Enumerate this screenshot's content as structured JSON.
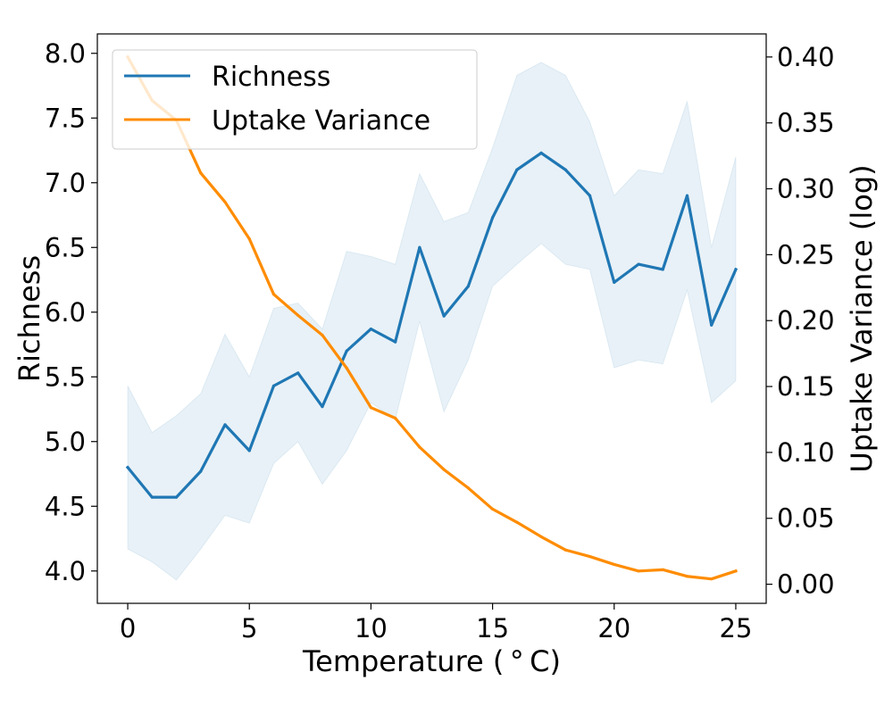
{
  "chart_data": {
    "type": "line",
    "xlabel": "Temperature ($^\\circ$C)",
    "xlabel_display": "Temperature ( ° C)",
    "ylabel": "Richness",
    "y2label": "Uptake Variance (log)",
    "xlim": [
      -1.25,
      26.25
    ],
    "ylim": [
      3.75,
      8.15
    ],
    "y2lim": [
      -0.0145,
      0.4175
    ],
    "x_ticks": [
      0,
      5,
      10,
      15,
      20,
      25
    ],
    "y_ticks": [
      "4.0",
      "4.5",
      "5.0",
      "5.5",
      "6.0",
      "6.5",
      "7.0",
      "7.5",
      "8.0"
    ],
    "y2_ticks": [
      "0.00",
      "0.05",
      "0.10",
      "0.15",
      "0.20",
      "0.25",
      "0.30",
      "0.35",
      "0.40"
    ],
    "legend_position": "top-left",
    "grid": false,
    "x": [
      0,
      1,
      2,
      3,
      4,
      5,
      6,
      7,
      8,
      9,
      10,
      11,
      12,
      13,
      14,
      15,
      16,
      17,
      18,
      19,
      20,
      21,
      22,
      23,
      24,
      25
    ],
    "series": [
      {
        "name": "Richness",
        "axis": "left",
        "color": "#1f77b4",
        "values": [
          4.8,
          4.57,
          4.57,
          4.77,
          5.13,
          4.93,
          5.43,
          5.53,
          5.27,
          5.7,
          5.87,
          5.77,
          6.5,
          5.97,
          6.2,
          6.73,
          7.1,
          7.23,
          7.1,
          6.9,
          6.23,
          6.37,
          6.33,
          6.9,
          5.9,
          6.33
        ],
        "band_upper": [
          5.43,
          5.07,
          5.2,
          5.37,
          5.83,
          5.5,
          6.03,
          6.07,
          5.87,
          6.47,
          6.43,
          6.37,
          7.07,
          6.7,
          6.77,
          7.27,
          7.83,
          7.93,
          7.83,
          7.47,
          6.9,
          7.1,
          7.07,
          7.63,
          6.5,
          7.2
        ],
        "band_lower": [
          4.17,
          4.07,
          3.93,
          4.17,
          4.43,
          4.37,
          4.83,
          5.0,
          4.67,
          4.93,
          5.3,
          5.17,
          5.93,
          5.23,
          5.63,
          6.2,
          6.37,
          6.53,
          6.37,
          6.33,
          5.57,
          5.63,
          5.6,
          6.17,
          5.3,
          5.47
        ],
        "band_color": "#1f77b4"
      },
      {
        "name": "Uptake Variance",
        "axis": "right",
        "color": "#ff8c00",
        "values": [
          0.4,
          0.367,
          0.352,
          0.312,
          0.29,
          0.262,
          0.22,
          0.204,
          0.189,
          0.164,
          0.134,
          0.126,
          0.104,
          0.087,
          0.073,
          0.057,
          0.047,
          0.036,
          0.026,
          0.021,
          0.015,
          0.01,
          0.011,
          0.006,
          0.004,
          0.01
        ]
      }
    ]
  }
}
